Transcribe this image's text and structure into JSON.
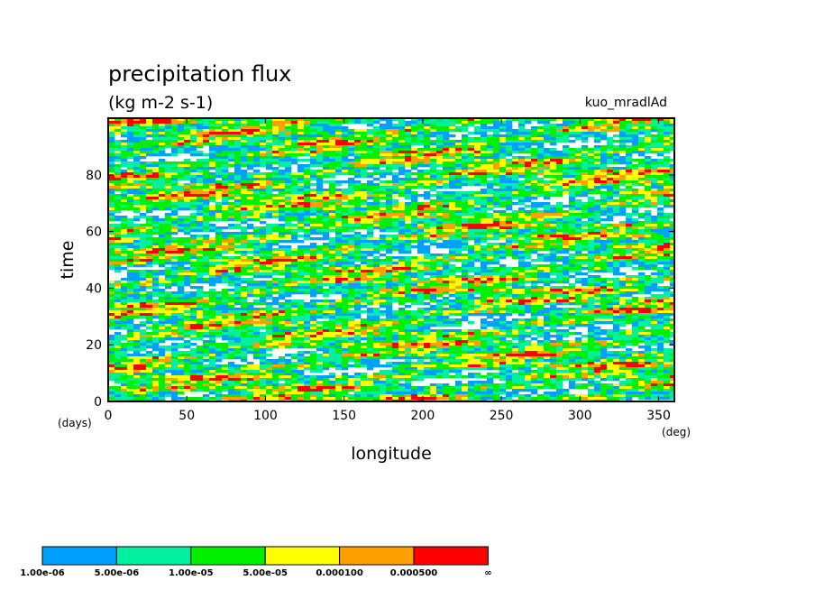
{
  "title": "precipitation flux",
  "units": "(kg m-2 s-1)",
  "run_label": "kuo_mradlAd",
  "chart_data": {
    "type": "heatmap",
    "xlabel": "longitude",
    "xunit": "(deg)",
    "ylabel": "time",
    "yunit": "(days)",
    "xlim": [
      0,
      360
    ],
    "ylim": [
      0,
      100
    ],
    "xticks": [
      0,
      50,
      100,
      150,
      200,
      250,
      300,
      350
    ],
    "yticks": [
      0,
      20,
      40,
      60,
      80
    ],
    "colorbar": {
      "levels": [
        "1.00e-06",
        "5.00e-06",
        "1.00e-05",
        "5.00e-05",
        "0.000100",
        "0.000500",
        "∞"
      ],
      "colors": [
        "#00a0ff",
        "#00f0a0",
        "#00f000",
        "#ffff00",
        "#ffa000",
        "#ff0000"
      ]
    },
    "background_color": "#ffffff"
  }
}
